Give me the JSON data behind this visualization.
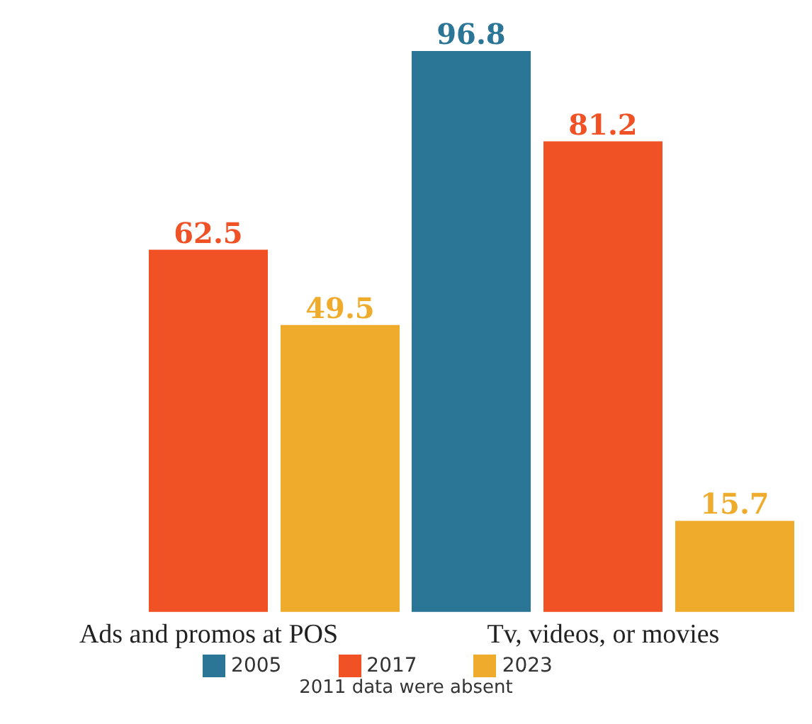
{
  "chart_data": {
    "type": "bar",
    "categories": [
      "Ads and promos at POS",
      "Tv, videos, or movies"
    ],
    "series": [
      {
        "name": "2005",
        "color": "#2b7596",
        "values": [
          null,
          96.8
        ]
      },
      {
        "name": "2017",
        "color": "#f05125",
        "values": [
          62.5,
          81.2
        ]
      },
      {
        "name": "2023",
        "color": "#efac2c",
        "values": [
          49.5,
          15.7
        ]
      }
    ],
    "data_labels": true,
    "legend": "bottom",
    "annotations": [
      "2011 data were absent"
    ]
  }
}
